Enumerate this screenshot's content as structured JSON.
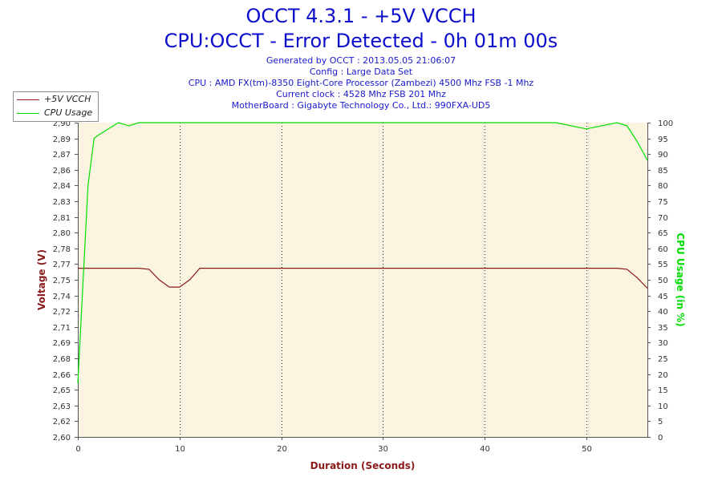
{
  "header": {
    "title_line1": "OCCT 4.3.1 - +5V VCCH",
    "title_line2": "CPU:OCCT - Error Detected - 0h 01m 00s",
    "info_lines": [
      "Generated by OCCT : 2013.05.05 21:06:07",
      "Config : Large Data Set",
      "CPU : AMD FX(tm)-8350 Eight-Core Processor (Zambezi) 4500 Mhz FSB -1 Mhz",
      "Current clock : 4528 Mhz FSB 201 Mhz",
      "MotherBoard : Gigabyte Technology Co., Ltd.: 990FXA-UD5"
    ]
  },
  "colors": {
    "voltage": "#8b1a1a",
    "cpu": "#00dd00",
    "plot_bg": "#fbf4e1",
    "title": "#0d0dcc",
    "axis_label": "#8b1a1a"
  },
  "chart_data": {
    "type": "line",
    "xlabel": "Duration (Seconds)",
    "ylabel_left": "Voltage (V)",
    "ylabel_right": "CPU Usage (in %)",
    "xlim": [
      0,
      56
    ],
    "ylim_left": [
      2.6,
      2.9
    ],
    "ylim_right": [
      0,
      100
    ],
    "x_ticks": [
      0,
      10,
      20,
      30,
      40,
      50
    ],
    "y_left_ticks": [
      "2,60",
      "2,62",
      "2,63",
      "2,65",
      "2,66",
      "2,68",
      "2,69",
      "2,71",
      "2,72",
      "2,74",
      "2,75",
      "2,77",
      "2,78",
      "2,80",
      "2,81",
      "2,83",
      "2,84",
      "2,86",
      "2,87",
      "2,89",
      "2,90"
    ],
    "y_right_ticks": [
      0,
      5,
      10,
      15,
      20,
      25,
      30,
      35,
      40,
      45,
      50,
      55,
      60,
      65,
      70,
      75,
      80,
      85,
      90,
      95,
      100
    ],
    "grid": true,
    "legend_position": "top-left",
    "series": [
      {
        "name": "+5V VCCH",
        "axis": "left",
        "x": [
          0,
          6,
          7,
          8,
          9,
          10,
          11,
          12,
          13,
          53,
          54,
          55,
          56
        ],
        "y": [
          2.761,
          2.761,
          2.76,
          2.75,
          2.743,
          2.743,
          2.75,
          2.761,
          2.761,
          2.761,
          2.76,
          2.752,
          2.742
        ]
      },
      {
        "name": "CPU Usage",
        "axis": "right",
        "x": [
          0,
          1,
          1.6,
          2,
          3,
          4,
          5,
          6,
          7,
          8,
          10,
          12,
          14,
          17,
          20,
          23,
          26,
          29,
          32,
          35,
          38,
          41,
          44,
          47,
          50,
          53,
          54,
          55,
          56
        ],
        "y": [
          17,
          80,
          95,
          96,
          98,
          100,
          99,
          100,
          100,
          100,
          100,
          100,
          100,
          100,
          100,
          100,
          100,
          100,
          100,
          100,
          100,
          100,
          100,
          100,
          98,
          100,
          99,
          94,
          88
        ]
      }
    ]
  }
}
